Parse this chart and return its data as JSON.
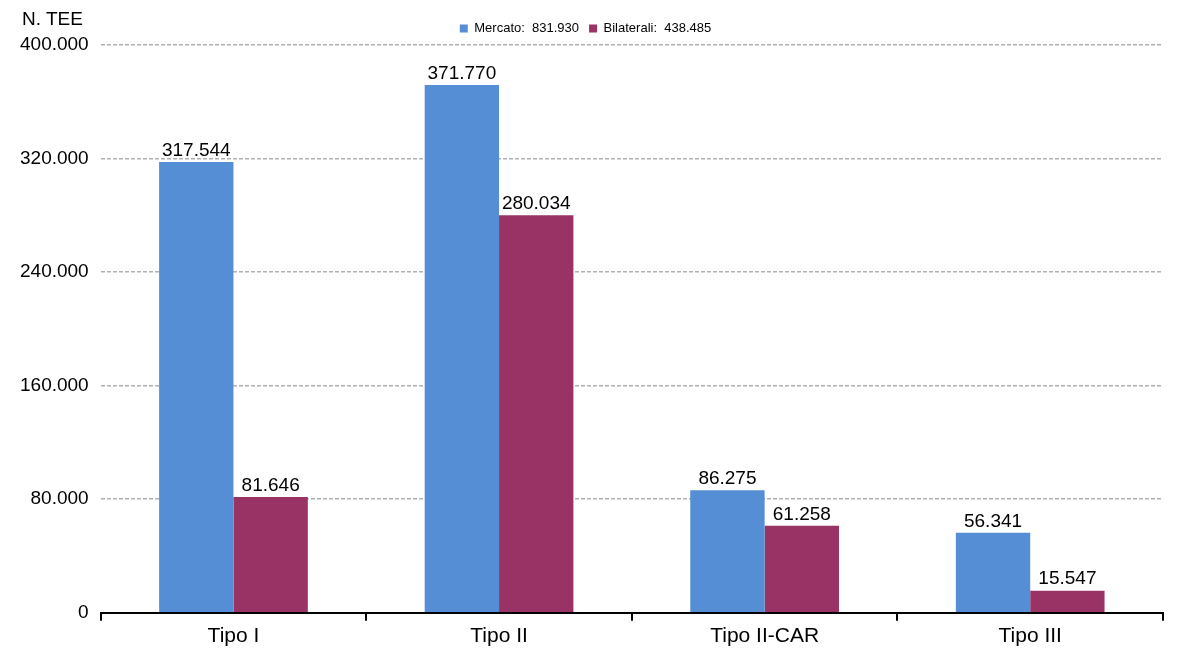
{
  "chart_data": {
    "type": "bar",
    "ylabel": "N. TEE",
    "categories": [
      "Tipo I",
      "Tipo II",
      "Tipo II-CAR",
      "Tipo III"
    ],
    "series": [
      {
        "name": "Mercato:  831.930",
        "color": "#558ed5",
        "values": [
          317544,
          371770,
          86275,
          56341
        ],
        "value_labels": [
          "317.544",
          "371.770",
          "86.275",
          "56.341"
        ]
      },
      {
        "name": "Bilaterali:  438.485",
        "color": "#993366",
        "values": [
          81646,
          280034,
          61258,
          15547
        ],
        "value_labels": [
          "81.646",
          "280.034",
          "61.258",
          "15.547"
        ]
      }
    ],
    "ylim": [
      0,
      400000
    ],
    "yticks": [
      {
        "value": 0,
        "label": "0"
      },
      {
        "value": 80000,
        "label": "80.000"
      },
      {
        "value": 160000,
        "label": "160.000"
      },
      {
        "value": 240000,
        "label": "240.000"
      },
      {
        "value": 320000,
        "label": "320.000"
      },
      {
        "value": 400000,
        "label": "400.000"
      }
    ],
    "grid": "y",
    "legend": "top",
    "line_style": "dashed"
  }
}
